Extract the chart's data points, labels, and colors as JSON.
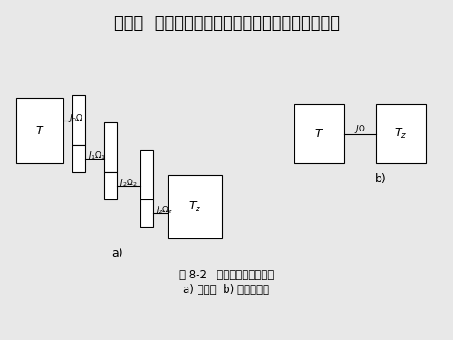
{
  "title": "第二节  工作机构转矩、力、飞轮力矩和质量的折算",
  "title_fontsize": 13,
  "bg_color": "#e8e8e8",
  "caption_line1": "图 8-2   电力拖动系统示意图",
  "caption_line2": "a) 传动图  b) 等效折算图",
  "caption_fontsize": 8.5,
  "label_a": "a)",
  "label_b": "b)",
  "box_color": "white",
  "edge_color": "black",
  "line_color": "black",
  "text_color": "black"
}
